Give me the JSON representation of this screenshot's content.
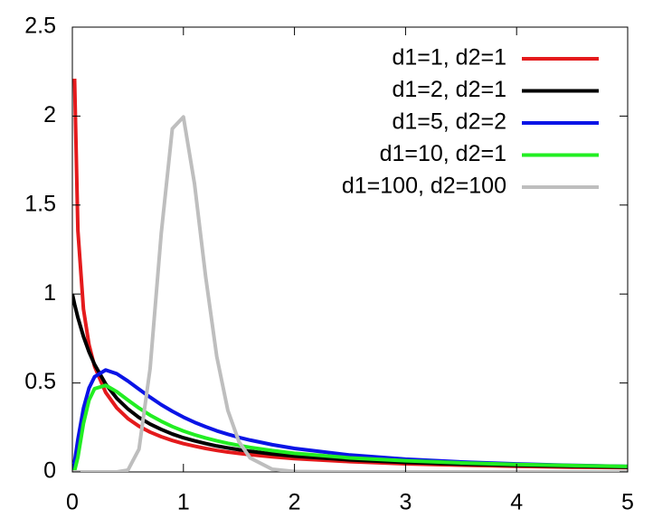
{
  "chart_data": {
    "type": "line",
    "x": [
      0,
      0.02,
      0.05,
      0.1,
      0.15,
      0.2,
      0.3,
      0.4,
      0.5,
      0.6,
      0.7,
      0.8,
      0.9,
      1.0,
      1.1,
      1.2,
      1.3,
      1.4,
      1.5,
      1.6,
      1.8,
      2,
      2.5,
      3,
      3.5,
      4,
      4.5,
      5
    ],
    "series": [
      {
        "name": "d1=1, d2=1",
        "color": "#e41a1c",
        "values": [
          null,
          2.21,
          1.356,
          0.915,
          0.715,
          0.593,
          0.447,
          0.36,
          0.3,
          0.257,
          0.224,
          0.198,
          0.177,
          0.159,
          0.145,
          0.132,
          0.121,
          0.112,
          0.104,
          0.097,
          0.085,
          0.075,
          0.058,
          0.046,
          0.038,
          0.032,
          0.027,
          0.024
        ]
      },
      {
        "name": "d1=2, d2=1",
        "color": "#000000",
        "values": [
          1,
          0.943,
          0.867,
          0.761,
          0.675,
          0.604,
          0.494,
          0.414,
          0.354,
          0.306,
          0.269,
          0.239,
          0.213,
          0.192,
          0.175,
          0.16,
          0.146,
          0.135,
          0.125,
          0.116,
          0.101,
          0.089,
          0.068,
          0.054,
          0.044,
          0.037,
          0.032,
          0.027
        ]
      },
      {
        "name": "d1=5, d2=2",
        "color": "#0a14e6",
        "values": [
          0,
          0.059,
          0.183,
          0.358,
          0.471,
          0.535,
          0.573,
          0.552,
          0.511,
          0.465,
          0.42,
          0.378,
          0.341,
          0.308,
          0.279,
          0.254,
          0.231,
          0.212,
          0.194,
          0.179,
          0.153,
          0.132,
          0.095,
          0.072,
          0.056,
          0.045,
          0.037,
          0.031
        ]
      },
      {
        "name": "d1=10, d2=1",
        "color": "#22ee22",
        "values": [
          0,
          0.007,
          0.083,
          0.272,
          0.403,
          0.468,
          0.487,
          0.451,
          0.404,
          0.359,
          0.319,
          0.285,
          0.255,
          0.23,
          0.209,
          0.191,
          0.175,
          0.161,
          0.149,
          0.138,
          0.12,
          0.105,
          0.079,
          0.063,
          0.051,
          0.042,
          0.036,
          0.031
        ]
      },
      {
        "name": "d1=100, d2=100",
        "color": "#bebebe",
        "values": [
          0,
          0,
          0,
          0,
          0,
          0,
          0,
          0,
          0.01,
          0.128,
          0.581,
          1.339,
          1.929,
          1.995,
          1.619,
          1.098,
          0.649,
          0.346,
          0.17,
          0.079,
          0.015,
          0.0025,
          0,
          0,
          0,
          0,
          0,
          0
        ]
      }
    ],
    "xlim": [
      0,
      5
    ],
    "ylim": [
      0,
      2.5
    ],
    "xticks": [
      0,
      1,
      2,
      3,
      4,
      5
    ],
    "yticks": [
      0,
      0.5,
      1,
      1.5,
      2,
      2.5
    ],
    "legend": "top-right"
  }
}
